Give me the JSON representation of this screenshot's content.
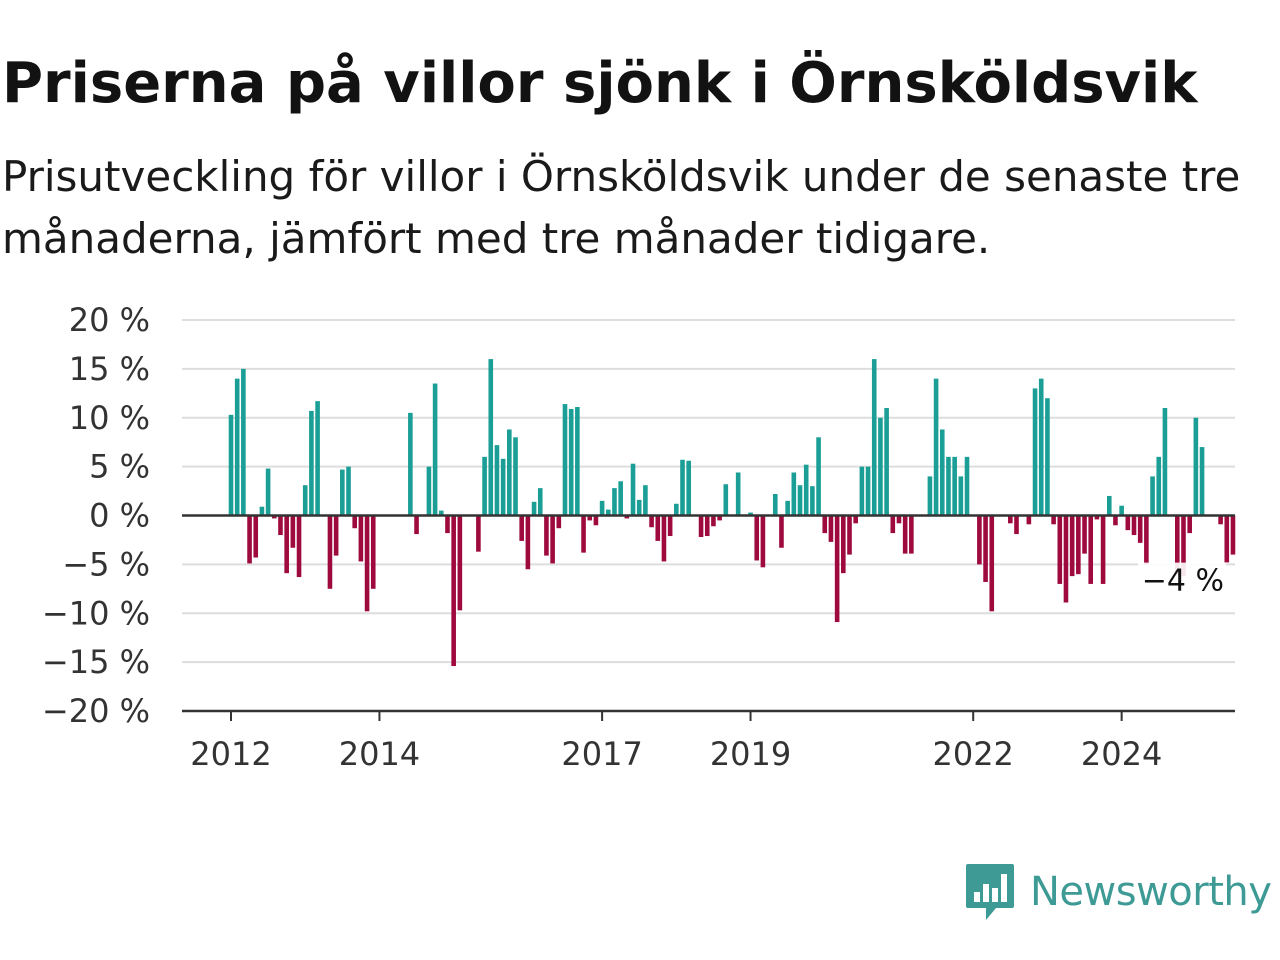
{
  "header": {
    "title": "Priserna på villor sjönk i Örnsköldsvik",
    "subtitle": "Prisutveckling för villor i Örnsköldsvik under de senaste tre månaderna, jämfört med tre månader tidigare."
  },
  "brand": {
    "name": "Newsworthy",
    "color": "#3d9a94",
    "icon": "newsworthy-chart-icon"
  },
  "chart_data": {
    "type": "bar",
    "title": "",
    "xlabel": "",
    "ylabel": "",
    "ylim": [
      -20,
      20
    ],
    "y_ticks": [
      {
        "value": 20,
        "label": "20 %"
      },
      {
        "value": 15,
        "label": "15 %"
      },
      {
        "value": 10,
        "label": "10 %"
      },
      {
        "value": 5,
        "label": "5 %"
      },
      {
        "value": 0,
        "label": "0 %"
      },
      {
        "value": -5,
        "label": "−5 %"
      },
      {
        "value": -10,
        "label": "−10 %"
      },
      {
        "value": -15,
        "label": "−15 %"
      },
      {
        "value": -20,
        "label": "−20 %"
      }
    ],
    "x_ticks": [
      {
        "date": "2012-01",
        "label": "2012"
      },
      {
        "date": "2014-01",
        "label": "2014"
      },
      {
        "date": "2017-01",
        "label": "2017"
      },
      {
        "date": "2019-01",
        "label": "2019"
      },
      {
        "date": "2022-01",
        "label": "2022"
      },
      {
        "date": "2024-01",
        "label": "2024"
      }
    ],
    "grid": true,
    "colors": {
      "positive": "#1a9e96",
      "negative": "#9e0a3e",
      "grid": "#dddddd",
      "axis": "#333333"
    },
    "end_label": "−4 %",
    "start": "2012-01",
    "values": [
      10.3,
      14,
      15,
      -4.9,
      -4.3,
      0.9,
      4.8,
      -0.3,
      -2,
      -5.9,
      -3.3,
      -6.3,
      3.1,
      10.7,
      11.7,
      0,
      -7.5,
      -4.1,
      4.7,
      5,
      -1.3,
      -4.7,
      -9.8,
      -7.5,
      0,
      0,
      0,
      0,
      0,
      10.5,
      -1.9,
      0,
      5,
      13.5,
      0.5,
      -1.8,
      -15.4,
      -9.7,
      0,
      0,
      -3.7,
      6,
      16,
      7.2,
      5.8,
      8.8,
      8,
      -2.6,
      -5.5,
      1.4,
      2.8,
      -4.1,
      -4.9,
      -1.3,
      11.4,
      10.9,
      11.1,
      -3.8,
      -0.5,
      -1,
      1.5,
      0.6,
      2.8,
      3.5,
      -0.3,
      5.3,
      1.6,
      3.1,
      -1.2,
      -2.6,
      -4.7,
      -2.1,
      1.2,
      5.7,
      5.6,
      0,
      -2.2,
      -2.1,
      -1.1,
      -0.5,
      3.2,
      0,
      4.4,
      0,
      0.3,
      -4.6,
      -5.3,
      0,
      2.2,
      -3.3,
      1.5,
      4.4,
      3.1,
      5.2,
      3,
      8,
      -1.8,
      -2.7,
      -10.9,
      -5.9,
      -4,
      -0.8,
      5,
      5,
      16,
      10,
      11,
      -1.8,
      -0.8,
      -3.9,
      -3.9,
      0,
      0,
      4,
      14,
      8.8,
      6,
      6,
      4,
      6,
      0,
      -5,
      -6.8,
      -9.8,
      0,
      0,
      -0.8,
      -1.9,
      0,
      -0.9,
      13,
      14,
      12,
      -0.9,
      -7,
      -8.9,
      -6.2,
      -6,
      -3.9,
      -7,
      -0.4,
      -7,
      2,
      -1,
      1,
      -1.5,
      -2,
      -2.8,
      -5,
      4,
      6,
      11,
      0,
      -6,
      -6.2,
      -1.8,
      10,
      7,
      0,
      0,
      -0.9,
      -4.8,
      -4
    ]
  }
}
